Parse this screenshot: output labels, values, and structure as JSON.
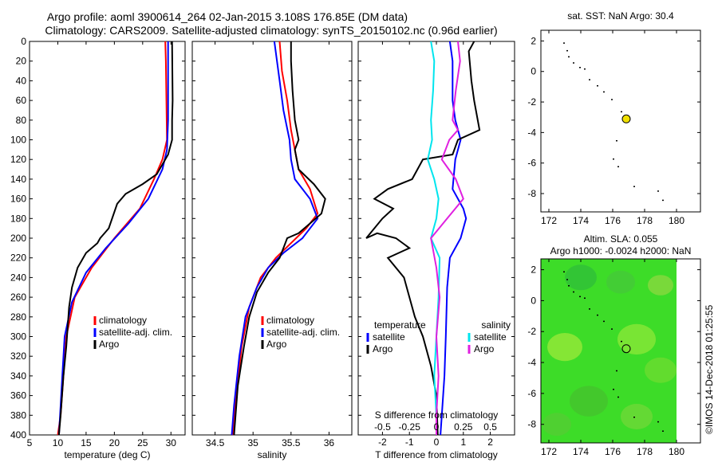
{
  "header": {
    "line1": "Argo profile: aoml 3900614_264 02-Jan-2015 3.108S 176.85E (DM data)",
    "line2": "Climatology: CARS2009. Satellite-adjusted climatology: synTS_20150102.nc (0.96d earlier)"
  },
  "side_label": "©IMOS 14-Dec-2018 01:25:55",
  "colors": {
    "climatology": "#ff0000",
    "satellite": "#0000ff",
    "argo": "#000000",
    "s_satellite": "#00e5ee",
    "s_argo": "#e020e0",
    "map_green": "#3ddc28",
    "marker": "#f0e000"
  },
  "chart_data": [
    {
      "name": "temperature",
      "type": "line",
      "xlabel": "temperature (deg C)",
      "ylim": [
        0,
        400
      ],
      "xlim": [
        5,
        32.5
      ],
      "xticks": [
        5,
        10,
        15,
        20,
        25,
        30
      ],
      "yticks": [
        0,
        20,
        40,
        60,
        80,
        100,
        120,
        140,
        160,
        180,
        200,
        220,
        240,
        260,
        280,
        300,
        320,
        340,
        360,
        380,
        400
      ],
      "legend": [
        "climatology",
        "satellite-adj. clim.",
        "Argo"
      ],
      "series": [
        {
          "name": "climatology",
          "color": "#ff0000",
          "points": [
            [
              29,
              0
            ],
            [
              29.1,
              20
            ],
            [
              29.2,
              60
            ],
            [
              29.3,
              100
            ],
            [
              28.5,
              120
            ],
            [
              27,
              140
            ],
            [
              24.5,
              170
            ],
            [
              20,
              200
            ],
            [
              16,
              230
            ],
            [
              13,
              260
            ],
            [
              11.5,
              300
            ],
            [
              11,
              340
            ],
            [
              10.5,
              380
            ],
            [
              10,
              400
            ]
          ]
        },
        {
          "name": "satellite-adj. clim.",
          "color": "#0000ff",
          "points": [
            [
              29.5,
              0
            ],
            [
              29.5,
              30
            ],
            [
              29.5,
              80
            ],
            [
              29.3,
              110
            ],
            [
              28.5,
              130
            ],
            [
              26,
              160
            ],
            [
              22.5,
              185
            ],
            [
              18.5,
              210
            ],
            [
              15,
              235
            ],
            [
              12.5,
              265
            ],
            [
              11.2,
              300
            ],
            [
              10.8,
              340
            ],
            [
              10.5,
              370
            ],
            [
              10.2,
              400
            ]
          ]
        },
        {
          "name": "Argo",
          "color": "#000000",
          "points": [
            [
              30.2,
              0
            ],
            [
              30.3,
              60
            ],
            [
              30.2,
              80
            ],
            [
              30.2,
              100
            ],
            [
              29.5,
              115
            ],
            [
              28.5,
              125
            ],
            [
              27.5,
              135
            ],
            [
              25,
              145
            ],
            [
              22,
              155
            ],
            [
              20.5,
              165
            ],
            [
              19,
              190
            ],
            [
              17.5,
              200
            ],
            [
              17,
              205
            ],
            [
              15,
              215
            ],
            [
              13.5,
              230
            ],
            [
              12.5,
              250
            ],
            [
              12,
              270
            ],
            [
              11.5,
              310
            ],
            [
              11,
              340
            ],
            [
              10.5,
              380
            ],
            [
              10.2,
              400
            ]
          ]
        }
      ]
    },
    {
      "name": "salinity",
      "type": "line",
      "xlabel": "salinity",
      "ylim": [
        0,
        400
      ],
      "xlim": [
        34.2,
        36.3
      ],
      "xticks": [
        34.5,
        35,
        35.5,
        36
      ],
      "xtick_labels": [
        "34.5",
        "35",
        "35.5",
        "36"
      ],
      "legend": [
        "climatology",
        "satellite-adj. clim.",
        "Argo"
      ],
      "series": [
        {
          "name": "climatology",
          "color": "#ff0000",
          "points": [
            [
              35.35,
              0
            ],
            [
              35.38,
              30
            ],
            [
              35.45,
              60
            ],
            [
              35.5,
              90
            ],
            [
              35.55,
              110
            ],
            [
              35.6,
              130
            ],
            [
              35.75,
              150
            ],
            [
              35.85,
              175
            ],
            [
              35.7,
              190
            ],
            [
              35.5,
              205
            ],
            [
              35.3,
              220
            ],
            [
              35.1,
              240
            ],
            [
              34.95,
              270
            ],
            [
              34.85,
              310
            ],
            [
              34.78,
              360
            ],
            [
              34.73,
              400
            ]
          ]
        },
        {
          "name": "satellite-adj. clim.",
          "color": "#0000ff",
          "points": [
            [
              35.28,
              0
            ],
            [
              35.35,
              40
            ],
            [
              35.4,
              70
            ],
            [
              35.48,
              100
            ],
            [
              35.5,
              120
            ],
            [
              35.55,
              140
            ],
            [
              35.75,
              160
            ],
            [
              35.85,
              180
            ],
            [
              35.65,
              200
            ],
            [
              35.4,
              215
            ],
            [
              35.2,
              230
            ],
            [
              35.05,
              250
            ],
            [
              34.9,
              280
            ],
            [
              34.82,
              320
            ],
            [
              34.75,
              370
            ],
            [
              34.72,
              400
            ]
          ]
        },
        {
          "name": "Argo",
          "color": "#000000",
          "points": [
            [
              35.5,
              0
            ],
            [
              35.5,
              20
            ],
            [
              35.52,
              50
            ],
            [
              35.55,
              80
            ],
            [
              35.6,
              100
            ],
            [
              35.55,
              110
            ],
            [
              35.6,
              130
            ],
            [
              35.8,
              145
            ],
            [
              35.95,
              160
            ],
            [
              35.9,
              175
            ],
            [
              35.75,
              185
            ],
            [
              35.6,
              195
            ],
            [
              35.45,
              200
            ],
            [
              35.4,
              210
            ],
            [
              35.35,
              220
            ],
            [
              35.2,
              235
            ],
            [
              35.05,
              255
            ],
            [
              34.95,
              280
            ],
            [
              34.88,
              310
            ],
            [
              34.8,
              350
            ],
            [
              34.75,
              400
            ]
          ]
        }
      ]
    },
    {
      "name": "differences",
      "type": "line",
      "xlabel": "T difference from climatology",
      "top_xlabel": "S difference from climatology",
      "ylim": [
        0,
        400
      ],
      "xlim": [
        -2.9,
        2.9
      ],
      "xticks": [
        -2,
        -1,
        0,
        1,
        2
      ],
      "xtick_labels": [
        "-2",
        "-1",
        "0",
        "1",
        "2"
      ],
      "sticks": [
        -0.5,
        -0.25,
        0,
        0.25,
        0.5
      ],
      "stick_labels": [
        "-0.5",
        "-0.25",
        "0",
        "0.25",
        "0.5"
      ],
      "legend_temperature": {
        "title": "temperature",
        "items": [
          "satellite",
          "Argo"
        ]
      },
      "legend_salinity": {
        "title": "salinity",
        "items": [
          "satellite",
          "Argo"
        ]
      },
      "series": [
        {
          "name": "T satellite",
          "color": "#0000ff",
          "points": [
            [
              0.5,
              0
            ],
            [
              0.6,
              20
            ],
            [
              0.6,
              60
            ],
            [
              0.7,
              80
            ],
            [
              0.9,
              100
            ],
            [
              0.7,
              120
            ],
            [
              0.6,
              150
            ],
            [
              1,
              170
            ],
            [
              1.1,
              180
            ],
            [
              0.9,
              200
            ],
            [
              0.5,
              220
            ],
            [
              0.4,
              250
            ],
            [
              0.35,
              300
            ],
            [
              0.3,
              340
            ],
            [
              0.2,
              380
            ],
            [
              0.15,
              400
            ]
          ]
        },
        {
          "name": "T Argo",
          "color": "#000000",
          "points": [
            [
              1.4,
              0
            ],
            [
              1.2,
              10
            ],
            [
              1.3,
              40
            ],
            [
              1.4,
              60
            ],
            [
              1.6,
              90
            ],
            [
              0.8,
              100
            ],
            [
              0.6,
              115
            ],
            [
              -0.5,
              120
            ],
            [
              -0.9,
              140
            ],
            [
              -1.8,
              150
            ],
            [
              -2.3,
              160
            ],
            [
              -1.6,
              170
            ],
            [
              -2.0,
              180
            ],
            [
              -2.6,
              200
            ],
            [
              -2.2,
              195
            ],
            [
              -1.5,
              200
            ],
            [
              -1.0,
              210
            ],
            [
              -1.8,
              220
            ],
            [
              -1.2,
              240
            ],
            [
              -1.0,
              260
            ],
            [
              -0.8,
              280
            ],
            [
              -0.5,
              300
            ],
            [
              -0.2,
              330
            ],
            [
              0,
              360
            ],
            [
              0.05,
              400
            ]
          ]
        },
        {
          "name": "S satellite",
          "color": "#00e5ee",
          "points": [
            [
              -0.05,
              0
            ],
            [
              -0.02,
              20
            ],
            [
              -0.03,
              50
            ],
            [
              -0.05,
              80
            ],
            [
              -0.04,
              100
            ],
            [
              -0.08,
              120
            ],
            [
              -0.02,
              140
            ],
            [
              0.02,
              160
            ],
            [
              0.0,
              180
            ],
            [
              -0.05,
              200
            ],
            [
              0.03,
              220
            ],
            [
              0.02,
              260
            ],
            [
              0.0,
              300
            ],
            [
              -0.02,
              340
            ],
            [
              0.0,
              380
            ],
            [
              0.0,
              400
            ]
          ]
        },
        {
          "name": "S Argo",
          "color": "#e020e0",
          "points": [
            [
              0.2,
              0
            ],
            [
              0.22,
              20
            ],
            [
              0.18,
              50
            ],
            [
              0.15,
              80
            ],
            [
              0.2,
              90
            ],
            [
              0.12,
              100
            ],
            [
              0.05,
              120
            ],
            [
              0.18,
              140
            ],
            [
              0.25,
              160
            ],
            [
              0.1,
              180
            ],
            [
              -0.05,
              200
            ],
            [
              0.0,
              230
            ],
            [
              0.03,
              260
            ],
            [
              0.0,
              300
            ],
            [
              0.02,
              340
            ],
            [
              0.0,
              380
            ],
            [
              0.0,
              400
            ]
          ]
        }
      ]
    },
    {
      "name": "map_sst",
      "type": "scatter",
      "title": "sat.  SST: NaN Argo: 30.4",
      "xlim": [
        171.5,
        181.5
      ],
      "ylim": [
        -9.2,
        2.7
      ],
      "xticks": [
        172,
        174,
        176,
        178,
        180
      ],
      "yticks": [
        2,
        0,
        -2,
        -4,
        -6,
        -8
      ],
      "argo_position": [
        176.85,
        -3.108
      ]
    },
    {
      "name": "map_sla",
      "type": "heatmap",
      "title": "Altim. SLA: 0.055",
      "subtitle": "Argo h1000: -0.0024 h2000: NaN",
      "xlim": [
        171.5,
        181.5
      ],
      "ylim": [
        -9.2,
        2.7
      ],
      "xticks": [
        172,
        174,
        176,
        178,
        180
      ],
      "yticks": [
        2,
        0,
        -2,
        -4,
        -6,
        -8
      ],
      "argo_position": [
        176.85,
        -3.108
      ]
    }
  ]
}
